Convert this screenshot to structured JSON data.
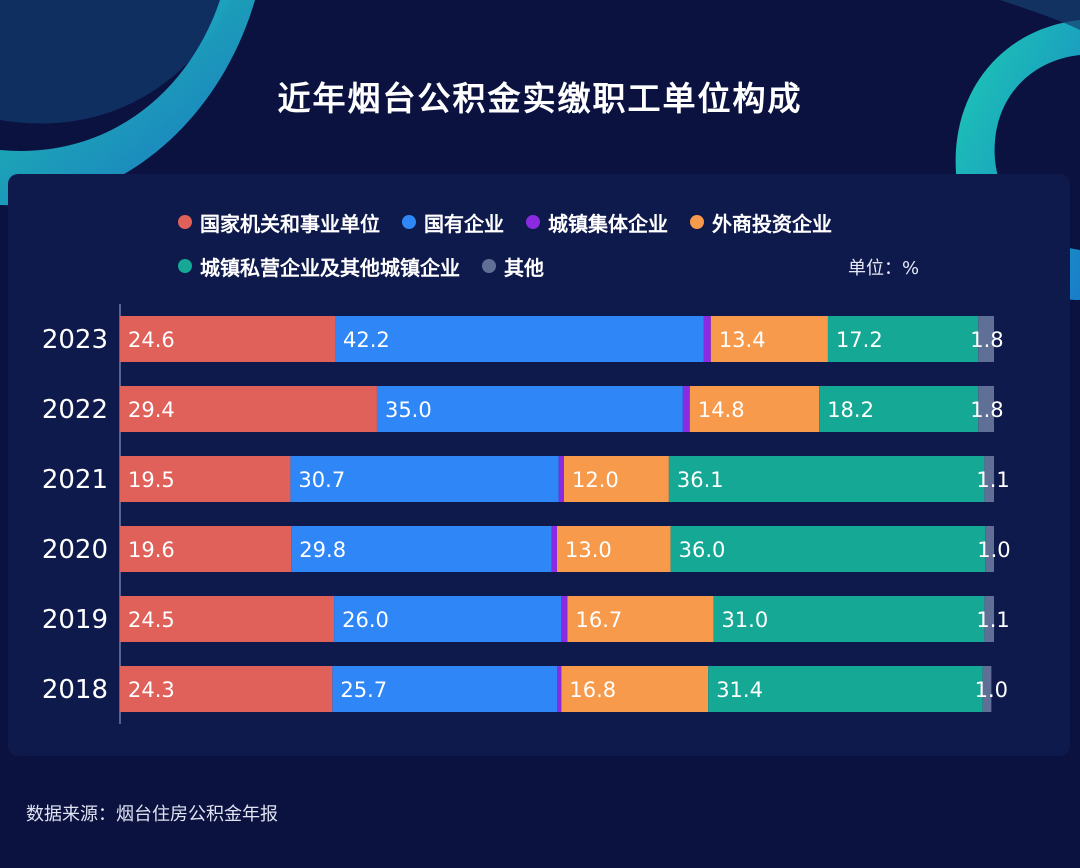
{
  "title": "近年烟台公积金实缴职工单位构成",
  "unit_label": "单位：%",
  "source": "数据来源：烟台住房公积金年报",
  "chart_data": {
    "type": "bar",
    "orientation": "horizontal",
    "stacked": true,
    "title": "近年烟台公积金实缴职工单位构成",
    "categories": [
      "2023",
      "2022",
      "2021",
      "2020",
      "2019",
      "2018"
    ],
    "series": [
      {
        "name": "国家机关和事业单位",
        "color": "#e0605a",
        "values": [
          24.6,
          29.4,
          19.5,
          19.6,
          24.5,
          24.3
        ]
      },
      {
        "name": "国有企业",
        "color": "#2f86f6",
        "values": [
          42.2,
          35.0,
          30.7,
          29.8,
          26.0,
          25.7
        ]
      },
      {
        "name": "城镇集体企业",
        "color": "#8a2be2",
        "values": [
          0.8,
          0.8,
          0.6,
          0.6,
          0.7,
          0.5
        ]
      },
      {
        "name": "外商投资企业",
        "color": "#f79a4b",
        "values": [
          13.4,
          14.8,
          12.0,
          13.0,
          16.7,
          16.8
        ]
      },
      {
        "name": "城镇私营企业及其他城镇企业",
        "color": "#14a895",
        "values": [
          17.2,
          18.2,
          36.1,
          36.0,
          31.0,
          31.4
        ]
      },
      {
        "name": "其他",
        "color": "#5f6f96",
        "values": [
          1.8,
          1.8,
          1.1,
          1.0,
          1.1,
          1.0
        ]
      }
    ],
    "labeled_series": [
      "国家机关和事业单位",
      "国有企业",
      "外商投资企业",
      "城镇私营企业及其他城镇企业",
      "其他"
    ],
    "xlim": [
      0,
      100
    ],
    "legend_position": "top"
  }
}
